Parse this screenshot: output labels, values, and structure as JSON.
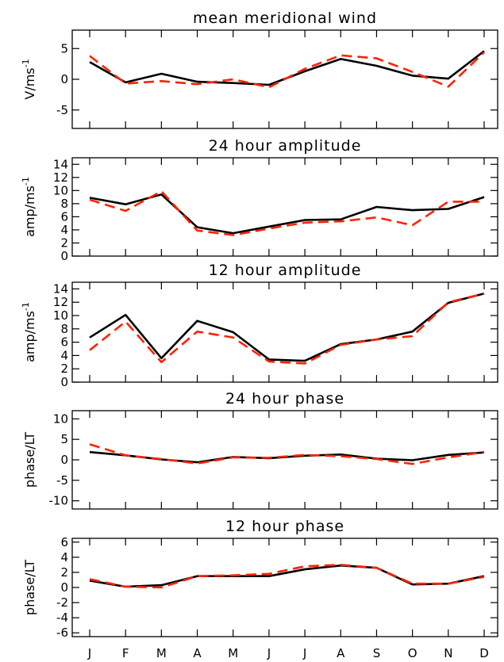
{
  "chart_data": [
    {
      "type": "line",
      "title": "mean meridional wind",
      "ylabel": "V/ms",
      "ylabel_sup": "-1",
      "ylim": [
        -8,
        8
      ],
      "yticks": [
        -5,
        0,
        5
      ],
      "categories": [
        "J",
        "F",
        "M",
        "A",
        "M",
        "J",
        "J",
        "A",
        "S",
        "O",
        "N",
        "D"
      ],
      "series": [
        {
          "style": "solid",
          "color": "#000000",
          "values": [
            2.8,
            -0.5,
            0.9,
            -0.4,
            -0.6,
            -0.9,
            1.3,
            3.3,
            2.2,
            0.6,
            0.1,
            4.6
          ]
        },
        {
          "style": "dashed",
          "color": "#ff2200",
          "values": [
            3.8,
            -0.7,
            -0.3,
            -0.8,
            0.0,
            -1.3,
            1.7,
            3.9,
            3.4,
            1.2,
            -1.2,
            4.4
          ]
        }
      ]
    },
    {
      "type": "line",
      "title": "24 hour amplitude",
      "ylabel": "amp/ms",
      "ylabel_sup": "-1",
      "ylim": [
        0,
        15
      ],
      "yticks": [
        0,
        2,
        4,
        6,
        8,
        10,
        12,
        14
      ],
      "categories": [
        "J",
        "F",
        "M",
        "A",
        "M",
        "J",
        "J",
        "A",
        "S",
        "O",
        "N",
        "D"
      ],
      "series": [
        {
          "style": "solid",
          "color": "#000000",
          "values": [
            8.9,
            7.9,
            9.4,
            4.4,
            3.5,
            4.5,
            5.5,
            5.6,
            7.5,
            7.0,
            7.2,
            9.0
          ]
        },
        {
          "style": "dashed",
          "color": "#ff2200",
          "values": [
            8.6,
            6.9,
            9.9,
            3.9,
            3.2,
            4.2,
            5.1,
            5.3,
            5.9,
            4.7,
            8.3,
            8.3
          ]
        }
      ]
    },
    {
      "type": "line",
      "title": "12 hour amplitude",
      "ylabel": "amp/ms",
      "ylabel_sup": "-1",
      "ylim": [
        0,
        15
      ],
      "yticks": [
        0,
        2,
        4,
        6,
        8,
        10,
        12,
        14
      ],
      "categories": [
        "J",
        "F",
        "M",
        "A",
        "M",
        "J",
        "J",
        "A",
        "S",
        "O",
        "N",
        "D"
      ],
      "series": [
        {
          "style": "solid",
          "color": "#000000",
          "values": [
            6.7,
            10.1,
            3.6,
            9.2,
            7.5,
            3.4,
            3.2,
            5.7,
            6.4,
            7.6,
            11.9,
            13.3
          ]
        },
        {
          "style": "dashed",
          "color": "#ff2200",
          "values": [
            4.8,
            9.1,
            3.0,
            7.6,
            6.7,
            3.1,
            2.8,
            5.6,
            6.4,
            6.9,
            12.0,
            13.3
          ]
        }
      ]
    },
    {
      "type": "line",
      "title": "24 hour phase",
      "ylabel": "phase/LT",
      "ylabel_sup": "",
      "ylim": [
        -12,
        12
      ],
      "yticks": [
        -10,
        -5,
        0,
        5,
        10
      ],
      "categories": [
        "J",
        "F",
        "M",
        "A",
        "M",
        "J",
        "J",
        "A",
        "S",
        "O",
        "N",
        "D"
      ],
      "series": [
        {
          "style": "solid",
          "color": "#000000",
          "values": [
            1.9,
            1.1,
            0.1,
            -0.6,
            0.7,
            0.4,
            1.0,
            1.3,
            0.3,
            -0.1,
            1.2,
            1.8
          ]
        },
        {
          "style": "dashed",
          "color": "#ff2200",
          "values": [
            3.8,
            1.1,
            0.2,
            -0.9,
            0.6,
            0.5,
            1.2,
            0.9,
            0.2,
            -1.0,
            0.6,
            1.9
          ]
        }
      ]
    },
    {
      "type": "line",
      "title": "12 hour phase",
      "ylabel": "phase/LT",
      "ylabel_sup": "",
      "ylim": [
        -6.5,
        6.5
      ],
      "yticks": [
        -6,
        -4,
        -2,
        0,
        2,
        4,
        6
      ],
      "categories": [
        "J",
        "F",
        "M",
        "A",
        "M",
        "J",
        "J",
        "A",
        "S",
        "O",
        "N",
        "D"
      ],
      "series": [
        {
          "style": "solid",
          "color": "#000000",
          "values": [
            0.9,
            0.1,
            0.3,
            1.5,
            1.5,
            1.5,
            2.4,
            2.9,
            2.6,
            0.4,
            0.5,
            1.5
          ]
        },
        {
          "style": "dashed",
          "color": "#ff2200",
          "values": [
            1.1,
            0.1,
            0.0,
            1.5,
            1.6,
            1.8,
            2.8,
            3.0,
            2.6,
            0.5,
            0.5,
            1.4
          ]
        }
      ]
    }
  ]
}
